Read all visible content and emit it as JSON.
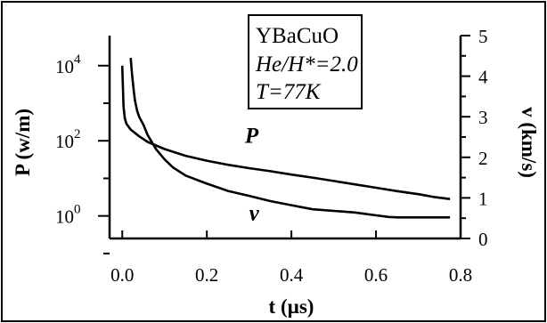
{
  "chart_data": {
    "type": "line",
    "info_box": {
      "line1": "YBaCuO",
      "line2": "He/H*=2.0",
      "line3": "T=77K"
    },
    "xlabel": "t (µs)",
    "ylabel_left": "P (w/m)",
    "ylabel_right": "v (km/s)",
    "xlim": [
      -0.03,
      0.8
    ],
    "xticks": [
      0.0,
      0.2,
      0.4,
      0.6,
      0.8
    ],
    "xtick_labels": [
      "0.0",
      "0.2",
      "0.4",
      "0.6",
      "0.8"
    ],
    "ylim_left_log10": [
      -0.6,
      4.8
    ],
    "ylim_left_scale": "log",
    "yticks_left_log10": [
      0,
      2,
      4
    ],
    "yticks_left_labels": [
      {
        "base": "10",
        "exp": "0"
      },
      {
        "base": "10",
        "exp": "2"
      },
      {
        "base": "10",
        "exp": "4"
      }
    ],
    "ylim_right": [
      0,
      5
    ],
    "yticks_right": [
      0,
      1,
      2,
      3,
      4,
      5
    ],
    "yticks_right_labels": [
      "0",
      "1",
      "2",
      "3",
      "4",
      "5"
    ],
    "series": [
      {
        "name": "P",
        "axis": "left",
        "log10_values": true,
        "x": [
          0.0,
          0.003,
          0.006,
          0.01,
          0.02,
          0.04,
          0.06,
          0.1,
          0.15,
          0.2,
          0.25,
          0.3,
          0.35,
          0.4,
          0.45,
          0.5,
          0.55,
          0.6,
          0.65,
          0.7,
          0.74,
          0.775
        ],
        "y": [
          4.0,
          2.9,
          2.6,
          2.45,
          2.3,
          2.12,
          1.97,
          1.78,
          1.6,
          1.47,
          1.36,
          1.27,
          1.19,
          1.1,
          1.02,
          0.93,
          0.84,
          0.75,
          0.66,
          0.58,
          0.5,
          0.45
        ]
      },
      {
        "name": "v",
        "axis": "right",
        "x": [
          0.02,
          0.023,
          0.027,
          0.03,
          0.035,
          0.04,
          0.05,
          0.06,
          0.08,
          0.1,
          0.12,
          0.15,
          0.2,
          0.25,
          0.3,
          0.35,
          0.4,
          0.45,
          0.5,
          0.55,
          0.6,
          0.63,
          0.65,
          0.7,
          0.775
        ],
        "y": [
          4.45,
          4.05,
          3.65,
          3.4,
          3.15,
          3.0,
          2.8,
          2.55,
          2.2,
          1.95,
          1.75,
          1.55,
          1.35,
          1.17,
          1.05,
          0.92,
          0.82,
          0.72,
          0.68,
          0.64,
          0.57,
          0.53,
          0.52,
          0.52,
          0.52
        ]
      }
    ],
    "curve_labels": {
      "P": "P",
      "v": "v"
    },
    "grid": false
  }
}
